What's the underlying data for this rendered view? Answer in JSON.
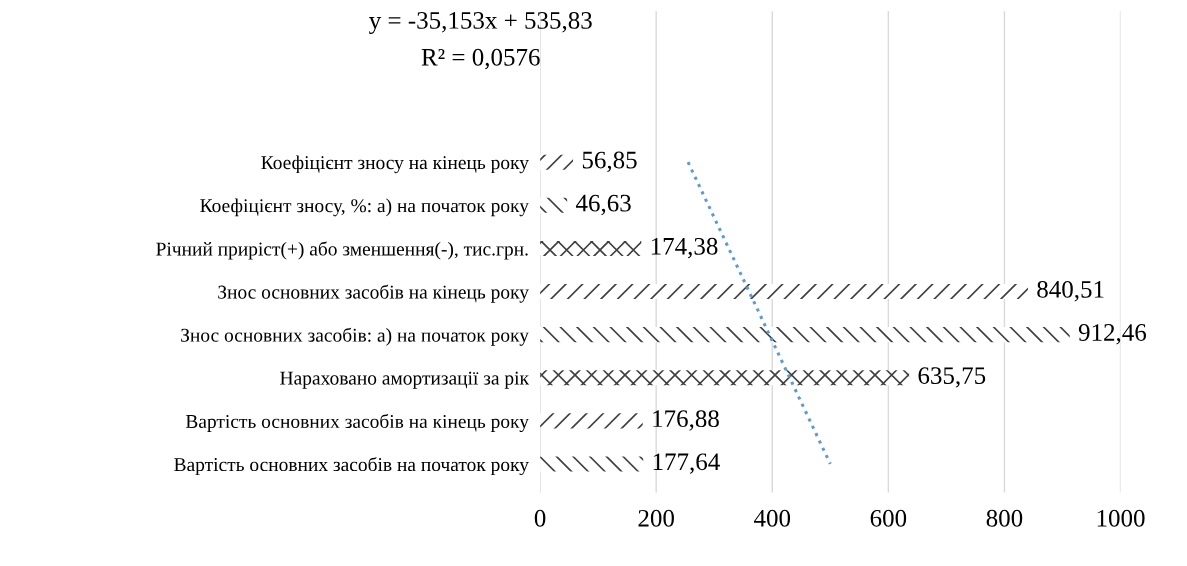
{
  "chart_data": {
    "type": "bar",
    "orientation": "horizontal",
    "categories": [
      "Коефіцієнт зносу на кінець року",
      "Коефіцієнт зносу, %: а) на початок року",
      "Річний приріст(+) або зменшення(-), тис.грн.",
      "Знос основних засобів на кінець року",
      "Знос основних засобів: а) на початок року",
      "Нараховано амортизації за рік",
      "Вартість основних засобів на кінець року",
      "Вартість основних засобів на початок року"
    ],
    "series": [
      {
        "color": "#404040",
        "values": [
          56.85,
          46.63,
          174.38,
          840.51,
          912.46,
          635.75,
          176.88,
          177.64
        ],
        "value_labels": [
          "56,85",
          "46,63",
          "174,38",
          "840,51",
          "912,46",
          "635,75",
          "176,88",
          "177,64"
        ]
      },
      {
        "type": "line",
        "color": "#5b9bd5",
        "line_style": "dotted",
        "values": [
          255,
          290,
          325,
          360,
          395,
          430,
          465,
          500
        ]
      }
    ],
    "annotations": [
      "y = -35,153x + 535,83",
      "R² = 0,0576"
    ],
    "xlim": [
      0,
      1000
    ],
    "xticks": [
      0,
      200,
      400,
      600,
      800,
      1000
    ],
    "grid": "x",
    "legend": false
  }
}
